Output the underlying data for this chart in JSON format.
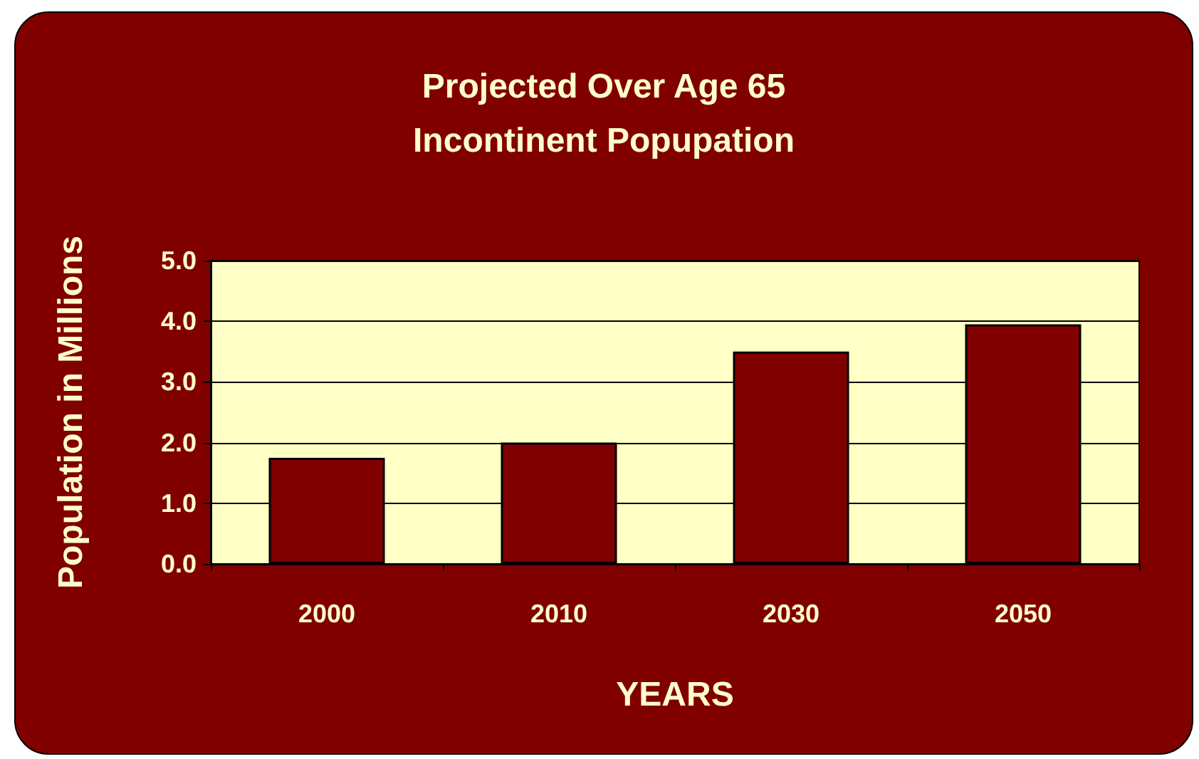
{
  "chart_data": {
    "type": "bar",
    "title": "Projected Over Age 65\nIncontinent Popupation",
    "xlabel": "YEARS",
    "ylabel": "Population in Millions",
    "categories": [
      "2000",
      "2010",
      "2030",
      "2050"
    ],
    "values": [
      1.75,
      2.0,
      3.5,
      3.95
    ],
    "color": "#800000",
    "ylim": [
      0,
      5
    ],
    "yticks": [
      {
        "value": 0,
        "label": "0.0"
      },
      {
        "value": 1,
        "label": "1.0"
      },
      {
        "value": 2,
        "label": "2.0"
      },
      {
        "value": 3,
        "label": "3.0"
      },
      {
        "value": 4,
        "label": "4.0"
      },
      {
        "value": 5,
        "label": "5.0"
      }
    ],
    "grid": true
  }
}
